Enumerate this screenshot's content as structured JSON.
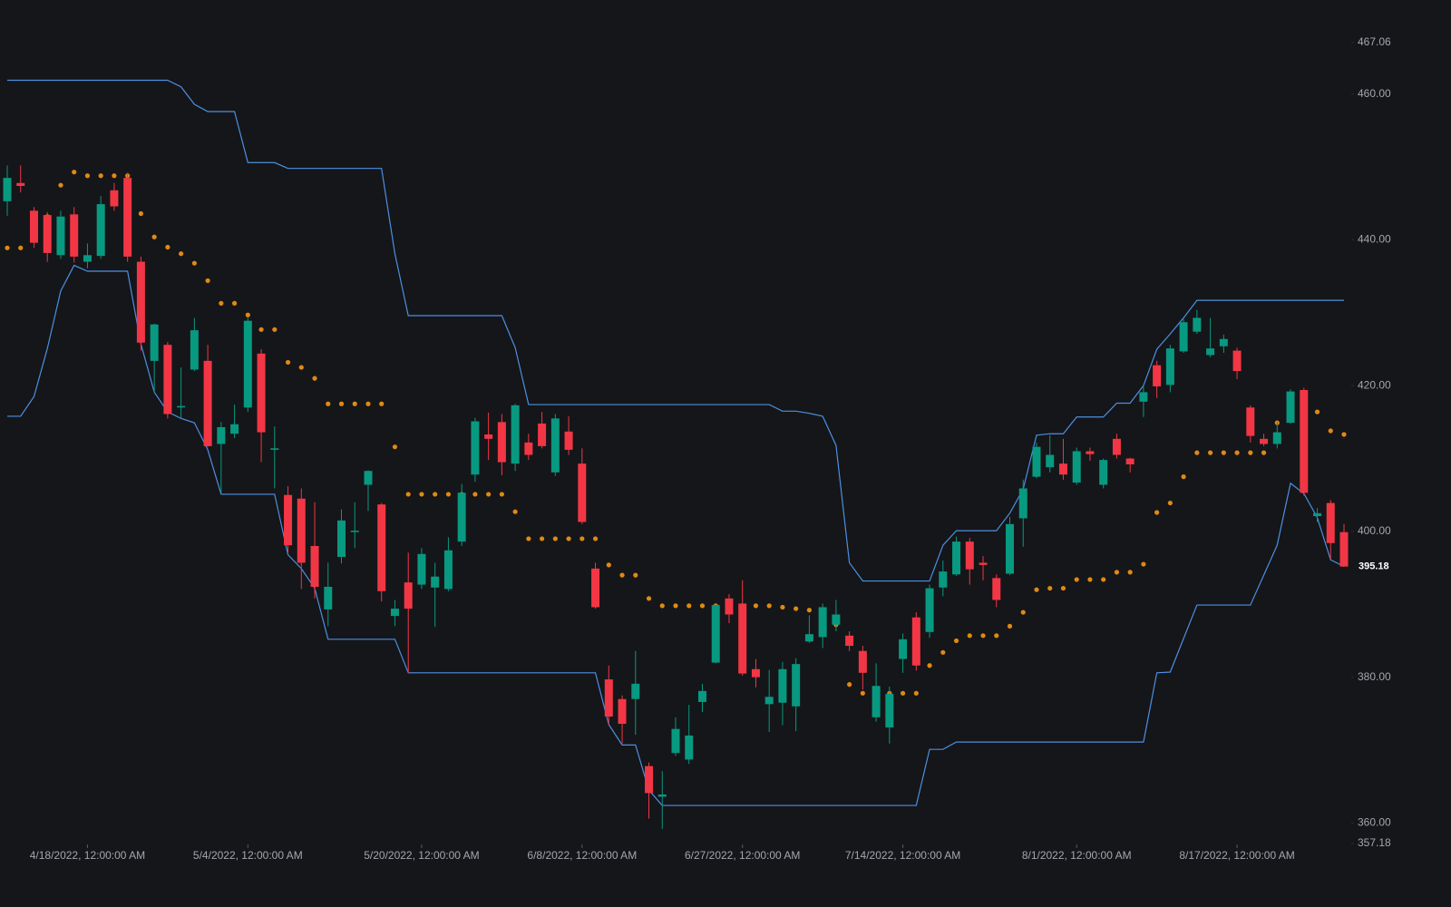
{
  "chart_data": {
    "type": "candlestick",
    "categories": [
      null,
      null,
      null,
      null,
      null,
      null,
      "4/18/2022, 12:00:00 AM",
      null,
      null,
      null,
      null,
      null,
      null,
      null,
      null,
      null,
      null,
      null,
      "5/4/2022, 12:00:00 AM",
      null,
      null,
      null,
      null,
      null,
      null,
      null,
      null,
      null,
      null,
      null,
      null,
      "5/20/2022, 12:00:00 AM",
      null,
      null,
      null,
      null,
      null,
      null,
      null,
      null,
      null,
      null,
      null,
      "6/8/2022, 12:00:00 AM",
      null,
      null,
      null,
      null,
      null,
      null,
      null,
      null,
      null,
      null,
      null,
      "6/27/2022, 12:00:00 AM",
      null,
      null,
      null,
      null,
      null,
      null,
      null,
      null,
      null,
      null,
      null,
      "7/14/2022, 12:00:00 AM",
      null,
      null,
      null,
      null,
      null,
      null,
      null,
      null,
      null,
      null,
      null,
      null,
      "8/1/2022, 12:00:00 AM",
      null,
      null,
      null,
      null,
      null,
      null,
      null,
      null,
      null,
      null,
      null,
      "8/17/2022, 12:00:00 AM",
      null,
      null,
      null,
      null,
      null,
      null,
      null,
      null
    ],
    "open": [
      445.3,
      447.8,
      444.0,
      443.4,
      437.9,
      443.5,
      437.0,
      437.8,
      446.8,
      448.5,
      437.0,
      423.4,
      425.6,
      417.0,
      422.2,
      423.4,
      412.0,
      413.4,
      417.0,
      424.4,
      411.2,
      405.0,
      404.5,
      398.0,
      389.3,
      396.5,
      400.0,
      406.4,
      403.7,
      388.4,
      393.0,
      392.7,
      392.3,
      392.1,
      398.6,
      407.8,
      413.3,
      415.0,
      409.3,
      412.2,
      414.8,
      408.1,
      413.7,
      409.3,
      394.9,
      379.7,
      377.0,
      377.0,
      367.8,
      363.6,
      369.6,
      368.7,
      376.6,
      382.0,
      390.8,
      390.1,
      381.1,
      376.3,
      376.5,
      376.0,
      384.9,
      385.5,
      387.2,
      385.7,
      383.6,
      374.5,
      373.1,
      382.5,
      388.2,
      386.2,
      392.3,
      394.1,
      398.6,
      395.7,
      393.6,
      394.2,
      401.8,
      407.5,
      408.8,
      409.3,
      406.7,
      411.0,
      406.4,
      412.7,
      410.0,
      417.8,
      422.8,
      420.1,
      424.7,
      427.4,
      424.2,
      425.4,
      424.8,
      417.0,
      412.7,
      412.0,
      414.9,
      419.4,
      402.1,
      403.9,
      399.9
    ],
    "high": [
      450.2,
      450.2,
      444.5,
      443.8,
      444.0,
      444.5,
      439.5,
      446.0,
      447.8,
      449.2,
      437.7,
      428.5,
      426.0,
      422.5,
      429.3,
      425.6,
      415.0,
      417.4,
      429.3,
      425.0,
      414.4,
      406.2,
      405.9,
      404.0,
      395.7,
      403.0,
      404.0,
      408.4,
      403.9,
      390.6,
      397.1,
      397.7,
      395.7,
      399.2,
      406.5,
      415.6,
      416.3,
      416.1,
      417.5,
      413.4,
      416.4,
      416.1,
      415.8,
      411.4,
      395.7,
      381.6,
      377.5,
      383.6,
      368.3,
      367.1,
      374.5,
      376.2,
      379.1,
      390.0,
      391.4,
      393.3,
      382.5,
      381.0,
      382.1,
      382.6,
      388.5,
      390.1,
      390.6,
      386.3,
      384.3,
      381.9,
      378.7,
      386.0,
      388.9,
      392.7,
      396.0,
      399.3,
      399.1,
      396.6,
      394.1,
      402.0,
      407.1,
      412.2,
      413.2,
      412.7,
      411.5,
      411.5,
      410.0,
      413.4,
      410.1,
      420.2,
      423.4,
      425.6,
      429.1,
      430.4,
      429.3,
      427.0,
      425.2,
      417.3,
      413.4,
      415.0,
      419.5,
      419.7,
      403.2,
      404.3,
      401.0
    ],
    "low": [
      443.3,
      446.5,
      438.9,
      437.0,
      437.4,
      436.9,
      436.1,
      437.4,
      444.0,
      437.0,
      424.8,
      419.1,
      415.5,
      415.5,
      422.0,
      411.6,
      405.3,
      412.8,
      416.4,
      409.5,
      405.9,
      397.1,
      392.1,
      390.8,
      387.0,
      395.6,
      397.7,
      402.8,
      390.4,
      387.0,
      380.6,
      392.1,
      386.9,
      391.8,
      398.0,
      406.8,
      409.8,
      407.7,
      408.3,
      409.8,
      411.4,
      407.6,
      410.5,
      401.0,
      389.4,
      373.4,
      370.9,
      372.1,
      360.6,
      359.2,
      369.2,
      368.1,
      375.2,
      381.9,
      387.4,
      380.2,
      378.6,
      372.5,
      373.4,
      372.6,
      384.7,
      384.0,
      386.3,
      383.6,
      378.3,
      373.9,
      370.9,
      380.6,
      380.9,
      385.4,
      391.1,
      393.9,
      392.7,
      393.3,
      389.6,
      394.0,
      397.9,
      407.3,
      408.1,
      407.1,
      406.4,
      409.7,
      405.9,
      410.0,
      408.1,
      415.7,
      418.3,
      419.1,
      424.5,
      427.1,
      423.9,
      424.5,
      420.9,
      412.2,
      411.7,
      411.4,
      414.8,
      404.9,
      401.3,
      396.2,
      395.18
    ],
    "close": [
      448.5,
      447.4,
      439.6,
      438.2,
      443.2,
      437.7,
      437.9,
      444.9,
      444.6,
      437.7,
      425.9,
      428.4,
      416.1,
      417.2,
      427.6,
      411.7,
      414.3,
      414.7,
      428.9,
      413.6,
      411.4,
      398.1,
      395.7,
      392.4,
      392.4,
      401.5,
      400.1,
      408.3,
      391.8,
      389.4,
      389.4,
      396.9,
      393.8,
      397.4,
      405.3,
      415.1,
      412.7,
      409.5,
      417.3,
      410.5,
      411.7,
      415.5,
      411.2,
      401.3,
      389.6,
      374.6,
      373.6,
      379.1,
      364.1,
      363.9,
      372.9,
      372.0,
      378.1,
      389.9,
      388.6,
      380.5,
      380.0,
      377.3,
      381.1,
      381.8,
      385.9,
      389.6,
      388.6,
      384.3,
      380.6,
      378.8,
      377.7,
      385.2,
      381.6,
      392.2,
      394.5,
      398.6,
      394.8,
      395.4,
      390.6,
      401.0,
      405.9,
      411.6,
      410.5,
      407.8,
      411.0,
      410.6,
      409.8,
      410.5,
      409.2,
      419.1,
      419.9,
      425.1,
      428.7,
      429.3,
      425.1,
      426.4,
      422.0,
      413.1,
      412.0,
      413.6,
      419.2,
      405.3,
      402.5,
      398.4,
      395.18
    ],
    "up_color": "#089981",
    "down_color": "#f23645",
    "upper_band": {
      "color": "#4c8fe3",
      "values": [
        461.9,
        461.9,
        461.9,
        461.9,
        461.9,
        461.9,
        461.9,
        461.9,
        461.9,
        461.9,
        461.9,
        461.9,
        461.9,
        461.0,
        458.6,
        457.6,
        457.6,
        457.6,
        450.6,
        450.6,
        450.6,
        449.8,
        449.8,
        449.8,
        449.8,
        449.8,
        449.8,
        449.8,
        449.8,
        438.1,
        429.6,
        429.6,
        429.6,
        429.6,
        429.6,
        429.6,
        429.6,
        429.6,
        425.2,
        417.4,
        417.4,
        417.4,
        417.4,
        417.4,
        417.4,
        417.4,
        417.4,
        417.4,
        417.4,
        417.4,
        417.4,
        417.4,
        417.4,
        417.4,
        417.4,
        417.4,
        417.4,
        417.4,
        416.5,
        416.5,
        416.2,
        415.8,
        411.8,
        395.7,
        393.2,
        393.2,
        393.2,
        393.2,
        393.2,
        393.2,
        398.1,
        400.1,
        400.1,
        400.1,
        400.1,
        402.5,
        405.8,
        413.2,
        413.4,
        413.4,
        415.7,
        415.7,
        415.7,
        417.6,
        417.6,
        420.0,
        425.0,
        427.1,
        429.3,
        431.7,
        431.7,
        431.7,
        431.7,
        431.7,
        431.7,
        431.7,
        431.7,
        431.7,
        431.7,
        431.7,
        431.7
      ]
    },
    "lower_band": {
      "color": "#4c8fe3",
      "values": [
        415.8,
        415.8,
        418.5,
        425.1,
        433.0,
        436.5,
        435.7,
        435.7,
        435.7,
        435.7,
        425.7,
        419.1,
        416.4,
        415.5,
        414.9,
        411.2,
        405.1,
        405.1,
        405.1,
        405.1,
        405.1,
        396.8,
        394.9,
        392.2,
        385.2,
        385.2,
        385.2,
        385.2,
        385.2,
        385.2,
        380.6,
        380.6,
        380.6,
        380.6,
        380.6,
        380.6,
        380.6,
        380.6,
        380.6,
        380.6,
        380.6,
        380.6,
        380.6,
        380.6,
        380.6,
        373.5,
        370.7,
        370.7,
        364.5,
        362.4,
        362.4,
        362.4,
        362.4,
        362.4,
        362.4,
        362.4,
        362.4,
        362.4,
        362.4,
        362.4,
        362.4,
        362.4,
        362.4,
        362.4,
        362.4,
        362.4,
        362.4,
        362.4,
        362.4,
        370.1,
        370.1,
        371.1,
        371.1,
        371.1,
        371.1,
        371.1,
        371.1,
        371.1,
        371.1,
        371.1,
        371.1,
        371.1,
        371.1,
        371.1,
        371.1,
        371.1,
        380.6,
        380.7,
        385.3,
        389.9,
        389.9,
        389.9,
        389.9,
        389.9,
        394.0,
        398.1,
        406.6,
        405.2,
        401.9,
        396.1,
        395.2
      ]
    },
    "sar": {
      "color": "#e08a12",
      "values": [
        438.9,
        438.9,
        441.0,
        443.2,
        447.5,
        449.3,
        448.8,
        448.8,
        448.8,
        448.8,
        443.6,
        440.4,
        439.0,
        438.1,
        436.8,
        434.4,
        431.3,
        431.3,
        429.7,
        427.7,
        427.7,
        423.2,
        422.5,
        421.0,
        417.5,
        417.5,
        417.5,
        417.5,
        417.5,
        411.6,
        405.1,
        405.1,
        405.1,
        405.1,
        405.1,
        405.1,
        405.1,
        405.1,
        402.7,
        399.0,
        399.0,
        399.0,
        399.0,
        399.0,
        399.0,
        395.4,
        394.0,
        394.0,
        390.8,
        389.8,
        389.8,
        389.8,
        389.8,
        389.8,
        389.8,
        389.8,
        389.8,
        389.8,
        389.6,
        389.4,
        389.2,
        389.0,
        387.2,
        379.0,
        377.8,
        377.8,
        377.8,
        377.8,
        377.8,
        381.6,
        383.4,
        385.0,
        385.7,
        385.7,
        385.7,
        387.0,
        388.9,
        392.0,
        392.2,
        392.2,
        393.4,
        393.4,
        393.4,
        394.4,
        394.4,
        395.5,
        402.6,
        403.9,
        407.5,
        410.8,
        410.8,
        410.8,
        410.8,
        410.8,
        410.8,
        414.9,
        415.7,
        416.0,
        416.4,
        413.8,
        413.3
      ]
    },
    "ylim": [
      357.18,
      467.06
    ],
    "yticks": [
      357.18,
      {
        "value": 360,
        "label": "360.00"
      },
      {
        "value": 380,
        "label": "380.00"
      },
      {
        "value": 400,
        "label": "400.00"
      },
      {
        "value": 420,
        "label": "420.00"
      },
      {
        "value": 440,
        "label": "440.00"
      },
      {
        "value": 460,
        "label": "460.00"
      },
      467.06
    ]
  }
}
